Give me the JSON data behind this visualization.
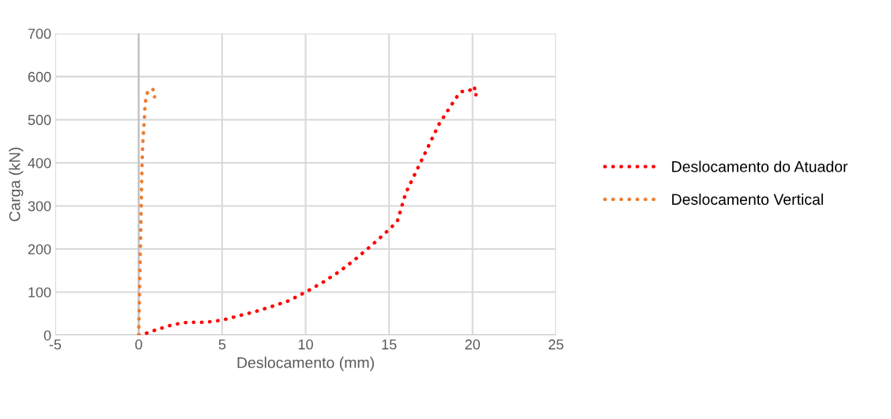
{
  "chart_data": {
    "type": "line",
    "xlabel": "Deslocamento (mm)",
    "ylabel": "Carga (kN)",
    "xlim": [
      -5,
      25
    ],
    "xticks": [
      -5,
      0,
      5,
      10,
      15,
      20,
      25
    ],
    "ylim": [
      0,
      700
    ],
    "yticks": [
      0,
      100,
      200,
      300,
      400,
      500,
      600,
      700
    ],
    "grid": true,
    "legend": "right",
    "line_style": "dotted",
    "marker": "none",
    "series": [
      {
        "name": "Deslocamento do Atuador",
        "color": "#ff0000",
        "x": [
          0,
          0.5,
          1,
          1.5,
          2,
          2.7,
          3.3,
          4,
          5,
          6,
          7,
          8,
          9,
          10,
          11,
          12,
          13,
          14,
          15,
          15.5,
          16,
          16.5,
          17,
          17.5,
          18,
          18.5,
          19,
          19.3,
          19.8,
          20.1,
          20.2
        ],
        "values": [
          0,
          5,
          12,
          18,
          24,
          29,
          30,
          30,
          35,
          45,
          55,
          67,
          80,
          100,
          122,
          147,
          177,
          210,
          245,
          265,
          330,
          370,
          410,
          450,
          490,
          520,
          550,
          565,
          567,
          578,
          558
        ]
      },
      {
        "name": "Deslocamento Vertical",
        "color": "#ed7d31",
        "x": [
          0,
          0.02,
          0.05,
          0.1,
          0.15,
          0.2,
          0.25,
          0.33,
          0.38,
          0.45,
          0.57,
          0.85,
          0.95
        ],
        "values": [
          0,
          50,
          100,
          200,
          300,
          400,
          450,
          496,
          531,
          555,
          568,
          571,
          553
        ]
      }
    ]
  }
}
